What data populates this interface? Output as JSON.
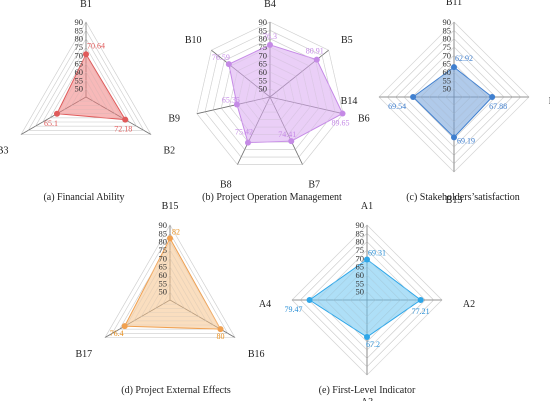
{
  "chart_data": [
    {
      "type": "radar",
      "caption": "(a) Financial Ability",
      "axes": [
        "B1",
        "B2",
        "B3"
      ],
      "values": [
        70.64,
        72.18,
        65.1
      ],
      "value_labels": [
        "70.64",
        "72.18",
        "65.1"
      ],
      "ticks": [
        "50",
        "55",
        "60",
        "65",
        "70",
        "75",
        "80",
        "85",
        "90"
      ],
      "range": [
        50,
        90
      ],
      "grid": true,
      "fill_color": "#f08080",
      "stroke_color": "#e05a5a",
      "label_color": "#e05a5a"
    },
    {
      "type": "radar",
      "caption": "(b) Project Operation Management",
      "axes": [
        "B4",
        "B5",
        "B6",
        "B7",
        "B8",
        "B9",
        "B10"
      ],
      "values": [
        76.3,
        80.91,
        89.65,
        74.41,
        75.42,
        65.35,
        76.59
      ],
      "value_labels": [
        "76.3",
        "80.91",
        "89.65",
        "74.41",
        "75.42",
        "65.35",
        "76.59"
      ],
      "ticks": [
        "50",
        "55",
        "60",
        "65",
        "70",
        "75",
        "80",
        "85",
        "90"
      ],
      "range": [
        50,
        90
      ],
      "grid": true,
      "fill_color": "#d9a8f0",
      "stroke_color": "#c58ae6",
      "label_color": "#c58ae6"
    },
    {
      "type": "radar",
      "caption": "(c) Stakeholders’satisfaction",
      "axes": [
        "B11",
        "B12",
        "B13",
        "B14"
      ],
      "values": [
        62.92,
        67.88,
        69.19,
        69.54
      ],
      "value_labels": [
        "62.92",
        "67.88",
        "69.19",
        "69.54"
      ],
      "ticks": [
        "50",
        "55",
        "60",
        "65",
        "70",
        "75",
        "80",
        "85",
        "90"
      ],
      "range": [
        50,
        90
      ],
      "grid": true,
      "fill_color": "#6f9ed8",
      "stroke_color": "#3f7fcf",
      "label_color": "#3f7fcf"
    },
    {
      "type": "radar",
      "caption": "(d) Project External Effects",
      "axes": [
        "B15",
        "B16",
        "B17"
      ],
      "values": [
        82,
        80,
        76.4
      ],
      "value_labels": [
        "82",
        "80",
        "76.4"
      ],
      "ticks": [
        "50",
        "55",
        "60",
        "65",
        "70",
        "75",
        "80",
        "85",
        "90"
      ],
      "range": [
        50,
        90
      ],
      "grid": true,
      "fill_color": "#f5c28a",
      "stroke_color": "#f0a050",
      "label_color": "#e8901f"
    },
    {
      "type": "radar",
      "caption": "(e) First-Level Indicator",
      "axes": [
        "A1",
        "A2",
        "A3",
        "A4"
      ],
      "values": [
        69.31,
        77.21,
        67.2,
        79.47
      ],
      "value_labels": [
        "69.31",
        "77.21",
        "67.2",
        "79.47"
      ],
      "ticks": [
        "50",
        "55",
        "60",
        "65",
        "70",
        "75",
        "80",
        "85",
        "90"
      ],
      "range": [
        50,
        90
      ],
      "grid": true,
      "fill_color": "#6cc4f0",
      "stroke_color": "#2ea6e8",
      "label_color": "#2a8fd6"
    }
  ]
}
